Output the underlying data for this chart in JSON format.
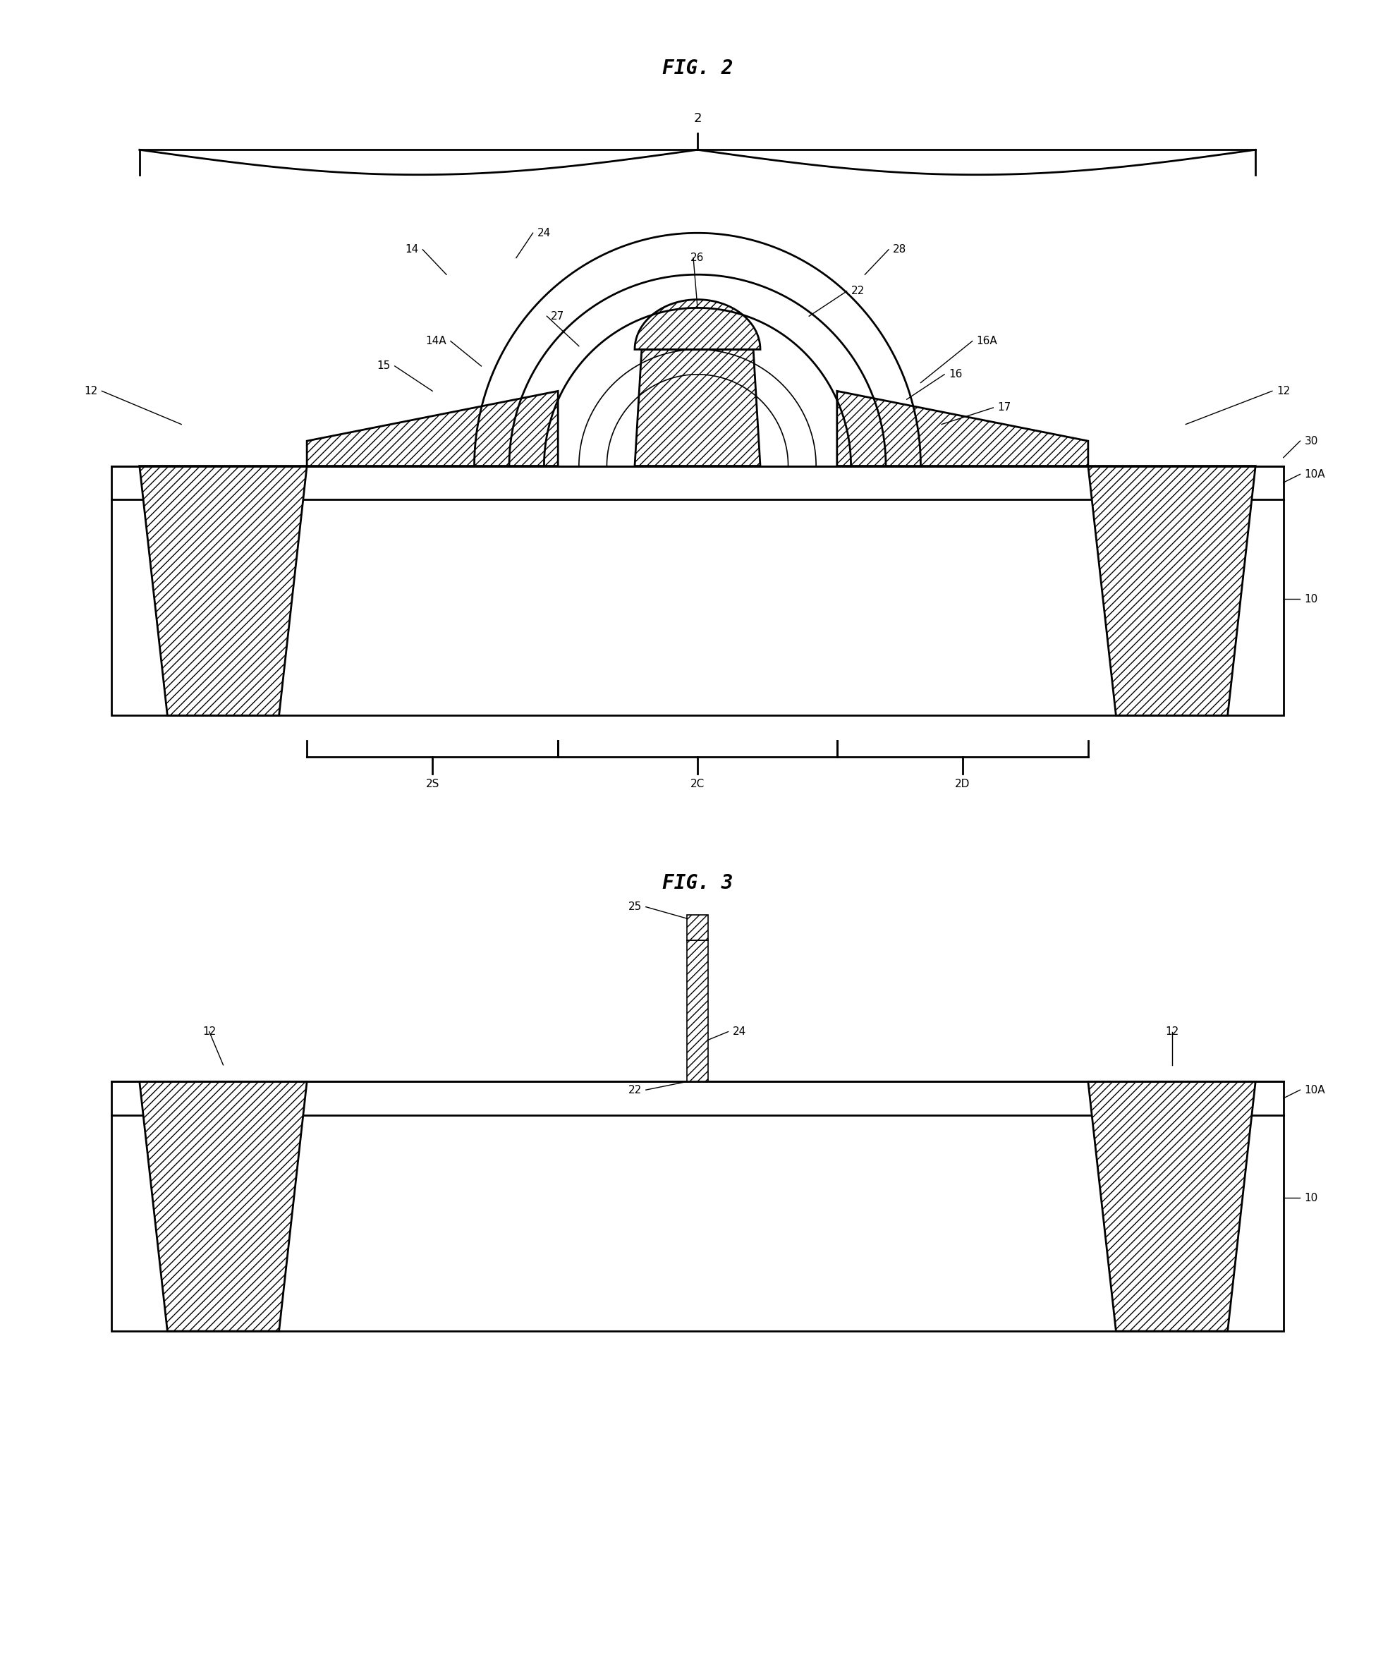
{
  "fig_title1": "FIG. 2",
  "fig_title2": "FIG. 3",
  "bg_color": "#ffffff",
  "labels": {
    "2": "2",
    "2S": "2S",
    "2C": "2C",
    "2D": "2D",
    "10": "10",
    "10A": "10A",
    "12": "12",
    "14": "14",
    "14A": "14A",
    "15": "15",
    "16": "16",
    "16A": "16A",
    "17": "17",
    "22": "22",
    "24": "24",
    "25": "25",
    "26": "26",
    "27": "27",
    "28": "28",
    "30": "30"
  }
}
